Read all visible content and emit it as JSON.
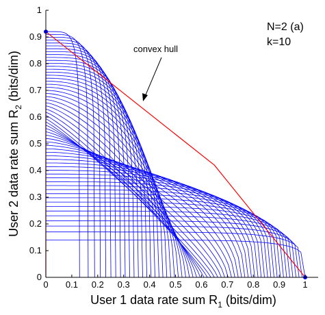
{
  "chart_data": {
    "type": "line",
    "title": "",
    "xlabel": {
      "text": "User 1 data rate sum R",
      "sub": "1",
      "suffix": " (bits/dim)"
    },
    "ylabel": {
      "text": "User 2 data rate sum R",
      "sub": "2",
      "suffix": " (bits/dim)"
    },
    "xlim": [
      0,
      1.05
    ],
    "ylim": [
      0,
      1
    ],
    "x_ticks": [
      "0",
      "0.1",
      "0.2",
      "0.3",
      "0.4",
      "0.5",
      "0.6",
      "0.7",
      "0.8",
      "0.9",
      "1"
    ],
    "y_ticks": [
      "0",
      "0.1",
      "0.2",
      "0.3",
      "0.4",
      "0.5",
      "0.6",
      "0.7",
      "0.8",
      "0.9",
      "1"
    ],
    "grid": false,
    "annotations": {
      "params_line1": "N=2 (a)",
      "params_line2": "k=10",
      "hull_label": "convex hull"
    },
    "colors": {
      "curves": "#0000ff",
      "hull": "#ff0000",
      "axes": "#000000"
    },
    "convex_hull": {
      "x": [
        0,
        0,
        0.65,
        1.0,
        1.0
      ],
      "y": [
        0,
        0.92,
        0.42,
        0,
        0
      ]
    },
    "endpoints": {
      "x": [
        0,
        1.0
      ],
      "y": [
        0.92,
        0
      ]
    },
    "curve_family": {
      "num_curves": 60,
      "x_intercept_range": [
        0.13,
        1.0
      ],
      "y_intercept_range": [
        0.14,
        0.92
      ],
      "shape_exponent_range": [
        1.1,
        6
      ]
    }
  }
}
